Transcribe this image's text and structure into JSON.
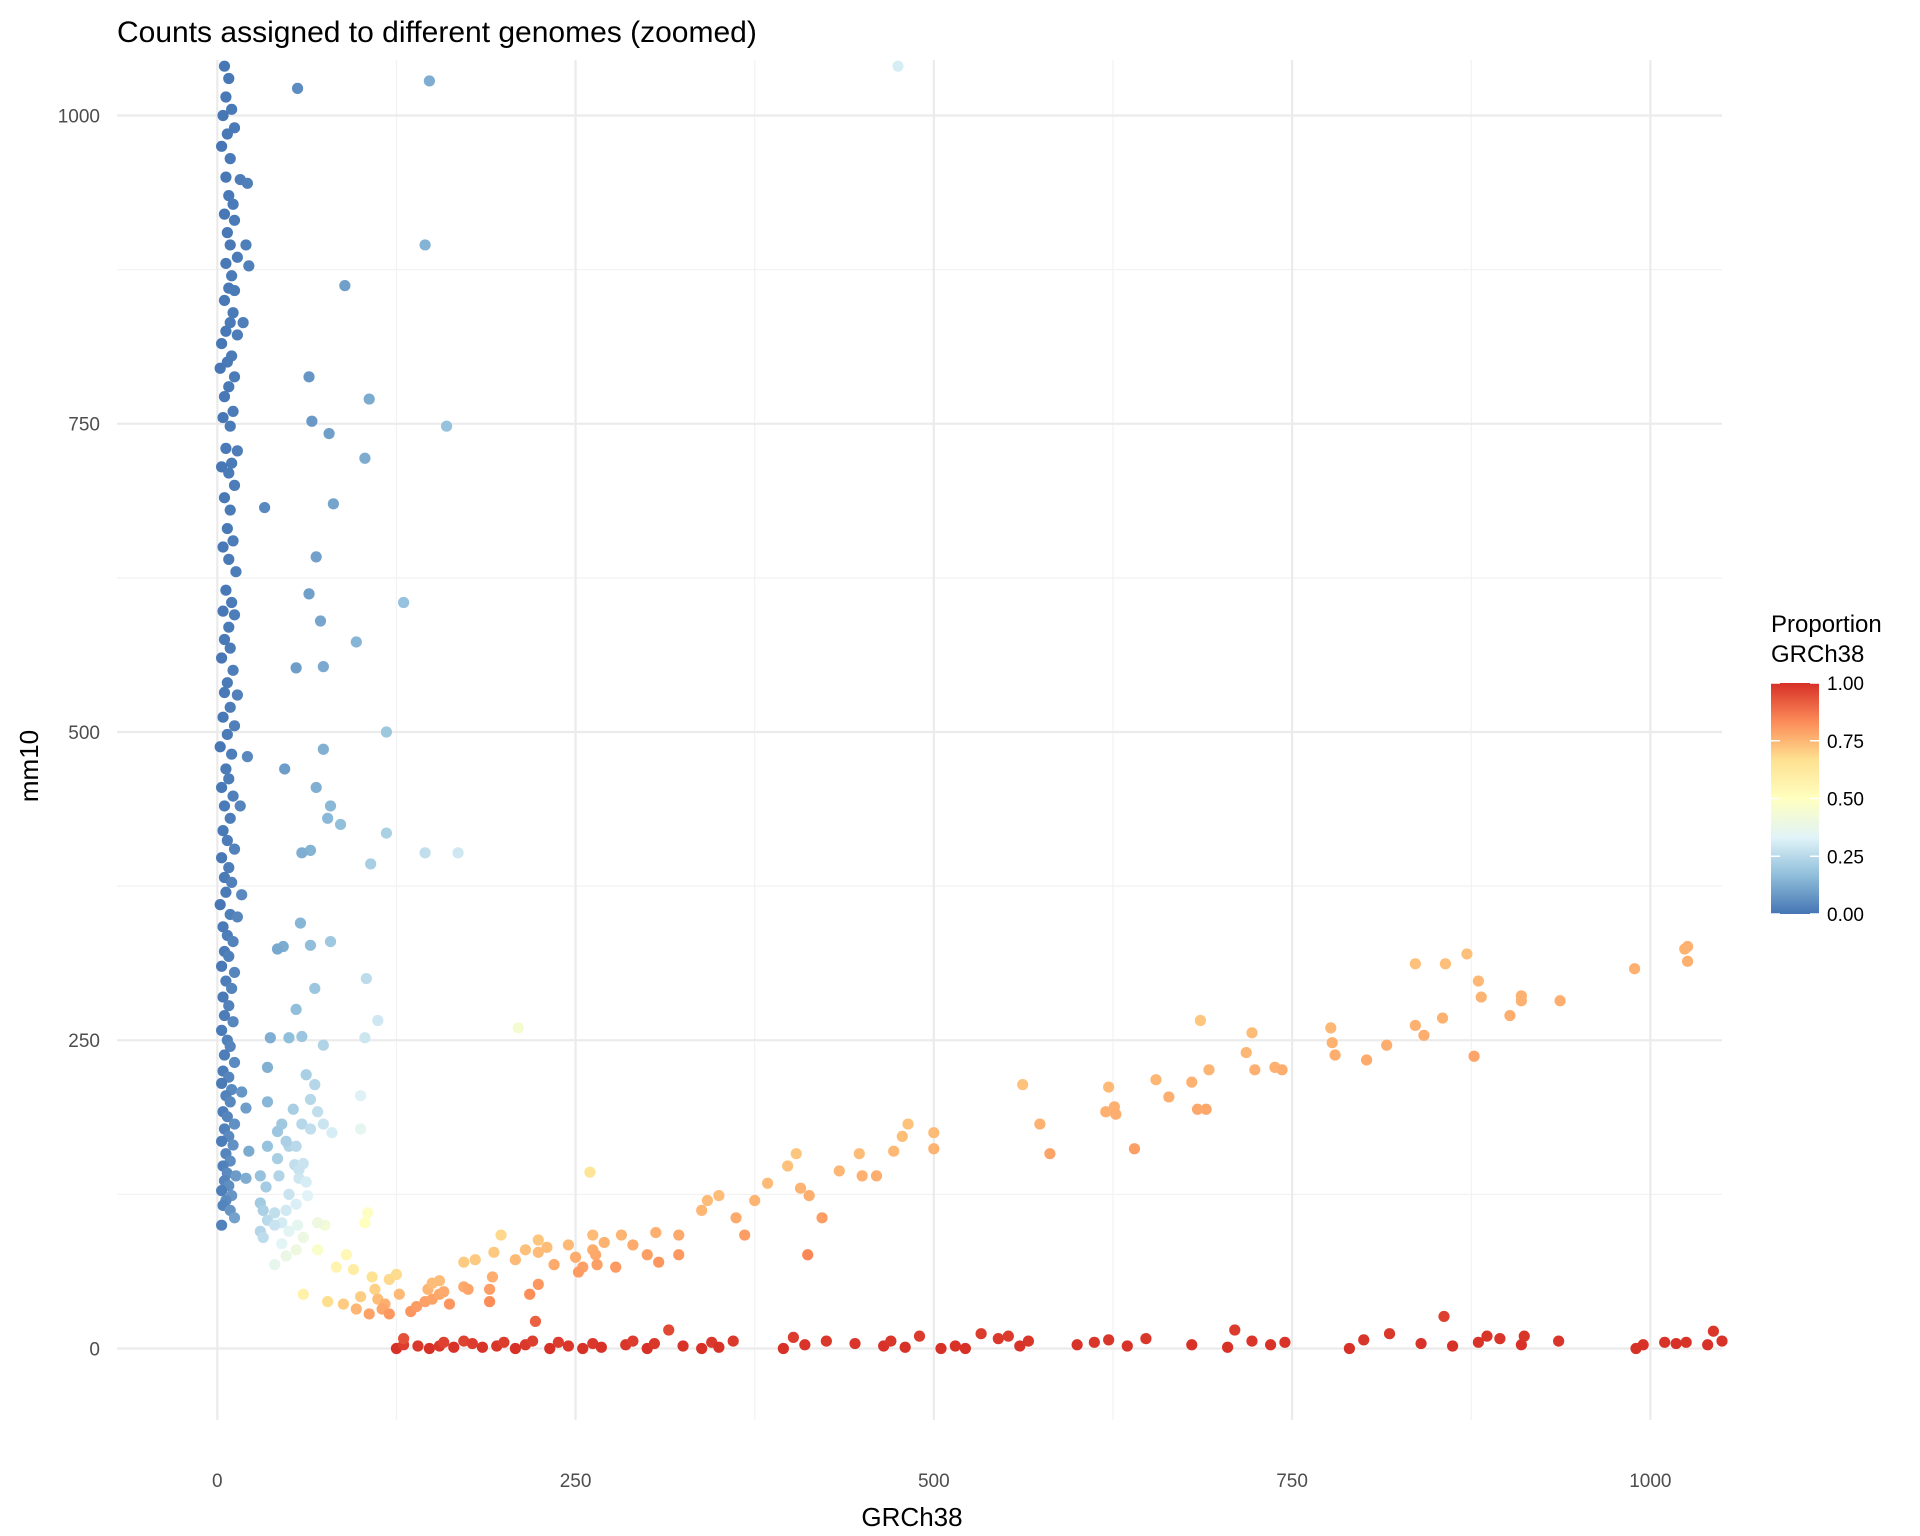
{
  "chart_data": {
    "type": "scatter",
    "title": "Counts assigned to different genomes (zoomed)",
    "xlabel": "GRCh38",
    "ylabel": "mm10",
    "xlim": [
      -70,
      1050
    ],
    "ylim": [
      -58,
      1045
    ],
    "x_ticks": [
      0,
      250,
      500,
      750,
      1000
    ],
    "y_ticks": [
      0,
      250,
      500,
      750,
      1000
    ],
    "x_tick_labels": [
      "0",
      "250",
      "500",
      "750",
      "1000"
    ],
    "y_tick_labels": [
      "0",
      "250",
      "500",
      "750",
      "1000"
    ],
    "grid": true,
    "legend": {
      "position": "right",
      "title_line1": "Proportion",
      "title_line2": "GRCh38",
      "ticks": [
        1.0,
        0.75,
        0.5,
        0.25,
        0.0
      ],
      "tick_labels": [
        "1.00",
        "0.75",
        "0.50",
        "0.25",
        "0.00"
      ],
      "range": [
        0,
        1
      ]
    },
    "color_scale": [
      "#4575b4",
      "#91bfdb",
      "#e0f3f8",
      "#ffffbf",
      "#fee090",
      "#fc8d59",
      "#d73027"
    ],
    "color_by": "Proportion GRCh38 = x / (x + y)",
    "points": [
      [
        5,
        1040
      ],
      [
        8,
        1030
      ],
      [
        6,
        1015
      ],
      [
        10,
        1005
      ],
      [
        4,
        1000
      ],
      [
        12,
        990
      ],
      [
        7,
        985
      ],
      [
        3,
        975
      ],
      [
        9,
        965
      ],
      [
        6,
        950
      ],
      [
        16,
        948
      ],
      [
        21,
        945
      ],
      [
        8,
        935
      ],
      [
        11,
        928
      ],
      [
        5,
        920
      ],
      [
        12,
        915
      ],
      [
        7,
        905
      ],
      [
        9,
        895
      ],
      [
        20,
        895
      ],
      [
        14,
        885
      ],
      [
        6,
        880
      ],
      [
        22,
        878
      ],
      [
        10,
        870
      ],
      [
        8,
        860
      ],
      [
        12,
        858
      ],
      [
        5,
        850
      ],
      [
        11,
        840
      ],
      [
        9,
        832
      ],
      [
        18,
        832
      ],
      [
        6,
        825
      ],
      [
        14,
        822
      ],
      [
        3,
        815
      ],
      [
        10,
        805
      ],
      [
        7,
        800
      ],
      [
        2,
        795
      ],
      [
        12,
        788
      ],
      [
        8,
        780
      ],
      [
        5,
        772
      ],
      [
        11,
        760
      ],
      [
        4,
        755
      ],
      [
        9,
        748
      ],
      [
        6,
        730
      ],
      [
        14,
        728
      ],
      [
        10,
        718
      ],
      [
        3,
        715
      ],
      [
        8,
        710
      ],
      [
        12,
        700
      ],
      [
        5,
        690
      ],
      [
        9,
        680
      ],
      [
        7,
        665
      ],
      [
        11,
        655
      ],
      [
        4,
        650
      ],
      [
        8,
        640
      ],
      [
        13,
        630
      ],
      [
        6,
        615
      ],
      [
        10,
        605
      ],
      [
        4,
        598
      ],
      [
        12,
        595
      ],
      [
        8,
        585
      ],
      [
        5,
        575
      ],
      [
        9,
        568
      ],
      [
        3,
        560
      ],
      [
        11,
        550
      ],
      [
        7,
        540
      ],
      [
        5,
        532
      ],
      [
        14,
        530
      ],
      [
        9,
        520
      ],
      [
        4,
        512
      ],
      [
        12,
        505
      ],
      [
        7,
        498
      ],
      [
        2,
        488
      ],
      [
        10,
        482
      ],
      [
        21,
        480
      ],
      [
        6,
        470
      ],
      [
        8,
        462
      ],
      [
        3,
        455
      ],
      [
        11,
        448
      ],
      [
        5,
        440
      ],
      [
        16,
        440
      ],
      [
        9,
        430
      ],
      [
        4,
        420
      ],
      [
        7,
        412
      ],
      [
        12,
        405
      ],
      [
        3,
        398
      ],
      [
        8,
        390
      ],
      [
        5,
        382
      ],
      [
        10,
        378
      ],
      [
        6,
        370
      ],
      [
        17,
        368
      ],
      [
        2,
        360
      ],
      [
        9,
        352
      ],
      [
        14,
        350
      ],
      [
        4,
        342
      ],
      [
        7,
        335
      ],
      [
        11,
        330
      ],
      [
        5,
        322
      ],
      [
        8,
        318
      ],
      [
        3,
        310
      ],
      [
        12,
        305
      ],
      [
        6,
        298
      ],
      [
        10,
        292
      ],
      [
        4,
        285
      ],
      [
        8,
        278
      ],
      [
        5,
        270
      ],
      [
        11,
        265
      ],
      [
        3,
        258
      ],
      [
        7,
        250
      ],
      [
        9,
        245
      ],
      [
        5,
        238
      ],
      [
        12,
        232
      ],
      [
        4,
        225
      ],
      [
        8,
        220
      ],
      [
        3,
        215
      ],
      [
        10,
        210
      ],
      [
        17,
        208
      ],
      [
        6,
        205
      ],
      [
        9,
        200
      ],
      [
        20,
        195
      ],
      [
        4,
        192
      ],
      [
        7,
        188
      ],
      [
        12,
        182
      ],
      [
        5,
        178
      ],
      [
        8,
        172
      ],
      [
        3,
        168
      ],
      [
        11,
        165
      ],
      [
        22,
        160
      ],
      [
        6,
        158
      ],
      [
        9,
        152
      ],
      [
        4,
        148
      ],
      [
        7,
        142
      ],
      [
        13,
        140
      ],
      [
        5,
        136
      ],
      [
        20,
        138
      ],
      [
        8,
        132
      ],
      [
        3,
        128
      ],
      [
        10,
        124
      ],
      [
        6,
        120
      ],
      [
        4,
        116
      ],
      [
        9,
        112
      ],
      [
        12,
        106
      ],
      [
        3,
        100
      ],
      [
        56,
        1022
      ],
      [
        148,
        1028
      ],
      [
        475,
        1040
      ],
      [
        145,
        895
      ],
      [
        89,
        862
      ],
      [
        64,
        788
      ],
      [
        106,
        770
      ],
      [
        66,
        752
      ],
      [
        160,
        748
      ],
      [
        78,
        742
      ],
      [
        103,
        722
      ],
      [
        33,
        682
      ],
      [
        81,
        685
      ],
      [
        69,
        642
      ],
      [
        64,
        612
      ],
      [
        130,
        605
      ],
      [
        72,
        590
      ],
      [
        97,
        573
      ],
      [
        55,
        552
      ],
      [
        74,
        553
      ],
      [
        118,
        500
      ],
      [
        74,
        486
      ],
      [
        47,
        470
      ],
      [
        69,
        455
      ],
      [
        79,
        440
      ],
      [
        77,
        430
      ],
      [
        86,
        425
      ],
      [
        118,
        418
      ],
      [
        65,
        404
      ],
      [
        59,
        402
      ],
      [
        145,
        402
      ],
      [
        168,
        402
      ],
      [
        107,
        393
      ],
      [
        58,
        345
      ],
      [
        79,
        330
      ],
      [
        46,
        326
      ],
      [
        42,
        324
      ],
      [
        65,
        327
      ],
      [
        104,
        300
      ],
      [
        68,
        292
      ],
      [
        55,
        275
      ],
      [
        112,
        266
      ],
      [
        210,
        260
      ],
      [
        37,
        252
      ],
      [
        50,
        252
      ],
      [
        59,
        253
      ],
      [
        74,
        246
      ],
      [
        103,
        252
      ],
      [
        35,
        228
      ],
      [
        62,
        222
      ],
      [
        68,
        214
      ],
      [
        65,
        202
      ],
      [
        100,
        205
      ],
      [
        35,
        200
      ],
      [
        53,
        194
      ],
      [
        70,
        192
      ],
      [
        45,
        182
      ],
      [
        59,
        182
      ],
      [
        65,
        178
      ],
      [
        74,
        182
      ],
      [
        42,
        176
      ],
      [
        80,
        175
      ],
      [
        100,
        178
      ],
      [
        50,
        164
      ],
      [
        48,
        168
      ],
      [
        35,
        164
      ],
      [
        55,
        164
      ],
      [
        42,
        154
      ],
      [
        54,
        149
      ],
      [
        60,
        150
      ],
      [
        57,
        145
      ],
      [
        43,
        140
      ],
      [
        57,
        138
      ],
      [
        30,
        140
      ],
      [
        62,
        135
      ],
      [
        63,
        124
      ],
      [
        34,
        131
      ],
      [
        50,
        125
      ],
      [
        30,
        118
      ],
      [
        55,
        117
      ],
      [
        32,
        112
      ],
      [
        48,
        112
      ],
      [
        35,
        104
      ],
      [
        40,
        110
      ],
      [
        45,
        102
      ],
      [
        56,
        100
      ],
      [
        30,
        95
      ],
      [
        32,
        90
      ],
      [
        40,
        100
      ],
      [
        50,
        95
      ],
      [
        45,
        85
      ],
      [
        60,
        90
      ],
      [
        55,
        80
      ],
      [
        48,
        75
      ],
      [
        40,
        68
      ],
      [
        70,
        80
      ],
      [
        75,
        100
      ],
      [
        70,
        102
      ],
      [
        90,
        76
      ],
      [
        60,
        44
      ],
      [
        95,
        64
      ],
      [
        83,
        66
      ],
      [
        77,
        38
      ],
      [
        88,
        36
      ],
      [
        97,
        32
      ],
      [
        105,
        110
      ],
      [
        103,
        102
      ],
      [
        260,
        143
      ],
      [
        110,
        48
      ],
      [
        108,
        58
      ],
      [
        120,
        56
      ],
      [
        125,
        60
      ],
      [
        127,
        44
      ],
      [
        100,
        42
      ],
      [
        112,
        40
      ],
      [
        117,
        36
      ],
      [
        115,
        32
      ],
      [
        120,
        28
      ],
      [
        106,
        28
      ],
      [
        135,
        30
      ],
      [
        139,
        34
      ],
      [
        145,
        38
      ],
      [
        150,
        40
      ],
      [
        147,
        48
      ],
      [
        150,
        53
      ],
      [
        155,
        55
      ],
      [
        155,
        44
      ],
      [
        158,
        46
      ],
      [
        162,
        36
      ],
      [
        172,
        50
      ],
      [
        175,
        48
      ],
      [
        172,
        70
      ],
      [
        180,
        72
      ],
      [
        190,
        48
      ],
      [
        192,
        58
      ],
      [
        193,
        78
      ],
      [
        198,
        92
      ],
      [
        190,
        38
      ],
      [
        208,
        72
      ],
      [
        215,
        80
      ],
      [
        218,
        44
      ],
      [
        224,
        88
      ],
      [
        224,
        78
      ],
      [
        230,
        82
      ],
      [
        224,
        52
      ],
      [
        235,
        68
      ],
      [
        250,
        74
      ],
      [
        245,
        84
      ],
      [
        255,
        66
      ],
      [
        265,
        68
      ],
      [
        262,
        80
      ],
      [
        252,
        62
      ],
      [
        262,
        92
      ],
      [
        270,
        86
      ],
      [
        264,
        76
      ],
      [
        282,
        92
      ],
      [
        278,
        66
      ],
      [
        290,
        84
      ],
      [
        300,
        76
      ],
      [
        306,
        94
      ],
      [
        308,
        70
      ],
      [
        322,
        92
      ],
      [
        322,
        76
      ],
      [
        338,
        112
      ],
      [
        342,
        120
      ],
      [
        350,
        124
      ],
      [
        362,
        106
      ],
      [
        368,
        92
      ],
      [
        375,
        120
      ],
      [
        384,
        134
      ],
      [
        398,
        148
      ],
      [
        404,
        158
      ],
      [
        407,
        130
      ],
      [
        413,
        124
      ],
      [
        422,
        106
      ],
      [
        412,
        76
      ],
      [
        434,
        144
      ],
      [
        448,
        158
      ],
      [
        450,
        140
      ],
      [
        460,
        140
      ],
      [
        472,
        160
      ],
      [
        478,
        172
      ],
      [
        482,
        182
      ],
      [
        500,
        175
      ],
      [
        500,
        162
      ],
      [
        562,
        214
      ],
      [
        574,
        182
      ],
      [
        581,
        158
      ],
      [
        620,
        192
      ],
      [
        622,
        212
      ],
      [
        626,
        196
      ],
      [
        627,
        190
      ],
      [
        640,
        162
      ],
      [
        655,
        218
      ],
      [
        664,
        204
      ],
      [
        680,
        216
      ],
      [
        684,
        194
      ],
      [
        686,
        266
      ],
      [
        690,
        194
      ],
      [
        692,
        226
      ],
      [
        718,
        240
      ],
      [
        722,
        256
      ],
      [
        724,
        226
      ],
      [
        738,
        228
      ],
      [
        743,
        226
      ],
      [
        777,
        260
      ],
      [
        778,
        248
      ],
      [
        780,
        238
      ],
      [
        802,
        234
      ],
      [
        816,
        246
      ],
      [
        836,
        312
      ],
      [
        836,
        262
      ],
      [
        842,
        254
      ],
      [
        855,
        268
      ],
      [
        857,
        312
      ],
      [
        872,
        320
      ],
      [
        877,
        237
      ],
      [
        880,
        298
      ],
      [
        882,
        285
      ],
      [
        902,
        270
      ],
      [
        910,
        282
      ],
      [
        910,
        286
      ],
      [
        937,
        282
      ],
      [
        989,
        308
      ],
      [
        1024,
        324
      ],
      [
        1026,
        326
      ],
      [
        1026,
        314
      ],
      [
        125,
        0
      ],
      [
        130,
        3
      ],
      [
        130,
        8
      ],
      [
        140,
        2
      ],
      [
        148,
        0
      ],
      [
        155,
        2
      ],
      [
        158,
        5
      ],
      [
        165,
        1
      ],
      [
        172,
        6
      ],
      [
        178,
        4
      ],
      [
        185,
        1
      ],
      [
        195,
        2
      ],
      [
        200,
        5
      ],
      [
        208,
        0
      ],
      [
        215,
        3
      ],
      [
        220,
        6
      ],
      [
        222,
        22
      ],
      [
        232,
        0
      ],
      [
        238,
        5
      ],
      [
        245,
        2
      ],
      [
        255,
        0
      ],
      [
        262,
        4
      ],
      [
        268,
        1
      ],
      [
        285,
        3
      ],
      [
        290,
        6
      ],
      [
        300,
        0
      ],
      [
        305,
        4
      ],
      [
        315,
        15
      ],
      [
        325,
        2
      ],
      [
        338,
        0
      ],
      [
        345,
        5
      ],
      [
        350,
        1
      ],
      [
        360,
        6
      ],
      [
        395,
        0
      ],
      [
        402,
        9
      ],
      [
        410,
        3
      ],
      [
        425,
        6
      ],
      [
        445,
        4
      ],
      [
        465,
        2
      ],
      [
        470,
        6
      ],
      [
        480,
        1
      ],
      [
        490,
        10
      ],
      [
        505,
        0
      ],
      [
        515,
        2
      ],
      [
        522,
        0
      ],
      [
        533,
        12
      ],
      [
        545,
        8
      ],
      [
        552,
        10
      ],
      [
        560,
        2
      ],
      [
        566,
        6
      ],
      [
        600,
        3
      ],
      [
        612,
        5
      ],
      [
        622,
        7
      ],
      [
        635,
        2
      ],
      [
        648,
        8
      ],
      [
        680,
        3
      ],
      [
        705,
        1
      ],
      [
        710,
        15
      ],
      [
        722,
        6
      ],
      [
        735,
        3
      ],
      [
        745,
        5
      ],
      [
        790,
        0
      ],
      [
        800,
        7
      ],
      [
        818,
        12
      ],
      [
        840,
        4
      ],
      [
        856,
        26
      ],
      [
        862,
        2
      ],
      [
        880,
        5
      ],
      [
        886,
        10
      ],
      [
        895,
        8
      ],
      [
        910,
        3
      ],
      [
        912,
        10
      ],
      [
        936,
        6
      ],
      [
        990,
        0
      ],
      [
        995,
        3
      ],
      [
        1010,
        5
      ],
      [
        1018,
        4
      ],
      [
        1025,
        5
      ],
      [
        1040,
        3
      ],
      [
        1044,
        14
      ],
      [
        1050,
        6
      ]
    ]
  }
}
